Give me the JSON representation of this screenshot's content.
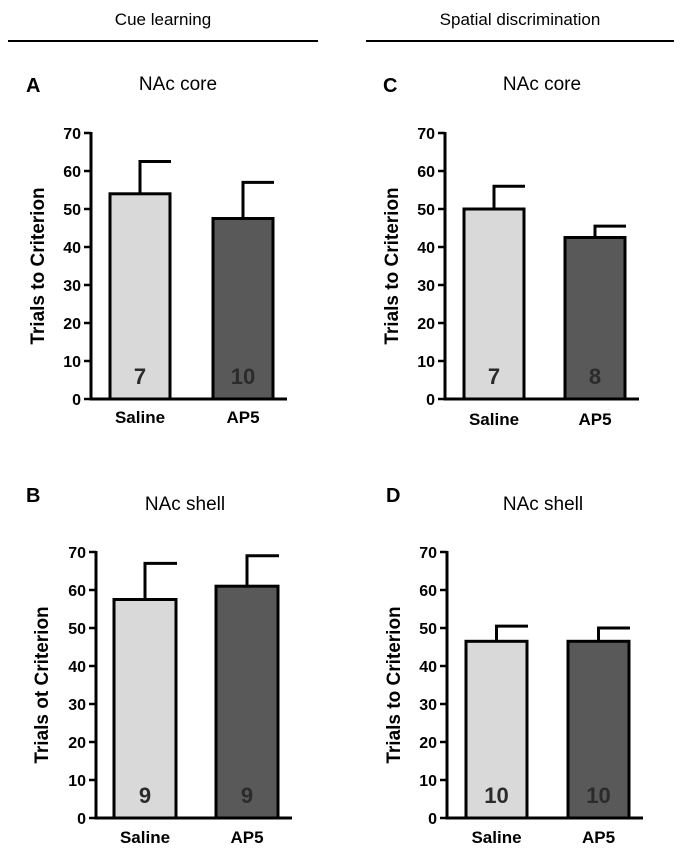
{
  "headers": {
    "left": "Cue learning",
    "right": "Spatial discrimination"
  },
  "colors": {
    "saline_fill": "#d9d9d9",
    "ap5_fill": "#595959",
    "axis": "#000000",
    "count_text": "#2b2b2b"
  },
  "chart_data": [
    {
      "panel": "A",
      "type": "bar",
      "title": "NAc core",
      "ylabel": "Trials to Criterion",
      "categories": [
        "Saline",
        "AP5"
      ],
      "values": [
        54,
        47.5
      ],
      "error": [
        8.5,
        9.5
      ],
      "counts": [
        "7",
        "10"
      ],
      "ylim": [
        0,
        70
      ],
      "yticks": [
        0,
        10,
        20,
        30,
        40,
        50,
        60,
        70
      ]
    },
    {
      "panel": "C",
      "type": "bar",
      "title": "NAc core",
      "ylabel": "Trials to Criterion",
      "categories": [
        "Saline",
        "AP5"
      ],
      "values": [
        50,
        42.5
      ],
      "error": [
        6,
        3
      ],
      "counts": [
        "7",
        "8"
      ],
      "ylim": [
        0,
        70
      ],
      "yticks": [
        0,
        10,
        20,
        30,
        40,
        50,
        60,
        70
      ]
    },
    {
      "panel": "B",
      "type": "bar",
      "title": "NAc shell",
      "ylabel": "Trials ot Criterion",
      "categories": [
        "Saline",
        "AP5"
      ],
      "values": [
        57.5,
        61
      ],
      "error": [
        9.5,
        8
      ],
      "counts": [
        "9",
        "9"
      ],
      "ylim": [
        0,
        70
      ],
      "yticks": [
        0,
        10,
        20,
        30,
        40,
        50,
        60,
        70
      ]
    },
    {
      "panel": "D",
      "type": "bar",
      "title": "NAc shell",
      "ylabel": "Trials to Criterion",
      "categories": [
        "Saline",
        "AP5"
      ],
      "values": [
        46.5,
        46.5
      ],
      "error": [
        4,
        3.5
      ],
      "counts": [
        "10",
        "10"
      ],
      "ylim": [
        0,
        70
      ],
      "yticks": [
        0,
        10,
        20,
        30,
        40,
        50,
        60,
        70
      ]
    }
  ]
}
